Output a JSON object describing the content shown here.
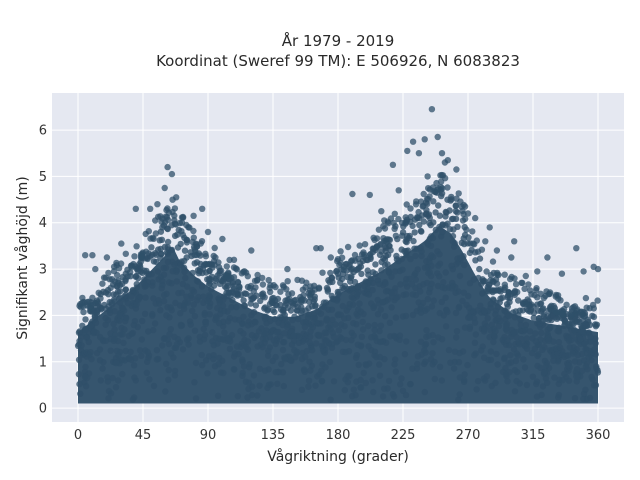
{
  "chart_data": {
    "type": "scatter",
    "title_line1": "År 1979 - 2019",
    "title_line2": "Koordinat (Sweref 99 TM): E 506926, N 6083823",
    "xlabel": "Vågriktning (grader)",
    "ylabel": "Signifikant våghöjd (m)",
    "xlim": [
      -18,
      378
    ],
    "ylim": [
      -0.3,
      6.8
    ],
    "x_ticks": [
      0,
      45,
      90,
      135,
      180,
      225,
      270,
      315,
      360
    ],
    "x_tick_labels": [
      "0",
      "45",
      "90",
      "135",
      "180",
      "225",
      "270",
      "315",
      "360"
    ],
    "y_ticks": [
      0,
      1,
      2,
      3,
      4,
      5,
      6
    ],
    "y_tick_labels": [
      "0",
      "1",
      "2",
      "3",
      "4",
      "5",
      "6"
    ],
    "grid": true,
    "marker_color": "#2f5069",
    "background_color": "#e5e8f1",
    "dense_upper_envelope": [
      [
        0,
        2.0
      ],
      [
        10,
        2.3
      ],
      [
        20,
        2.6
      ],
      [
        30,
        2.9
      ],
      [
        40,
        3.2
      ],
      [
        50,
        3.6
      ],
      [
        60,
        4.0
      ],
      [
        65,
        4.3
      ],
      [
        70,
        3.9
      ],
      [
        80,
        3.5
      ],
      [
        90,
        3.2
      ],
      [
        100,
        3.0
      ],
      [
        110,
        2.8
      ],
      [
        120,
        2.6
      ],
      [
        135,
        2.4
      ],
      [
        150,
        2.4
      ],
      [
        165,
        2.6
      ],
      [
        180,
        3.0
      ],
      [
        195,
        3.3
      ],
      [
        210,
        3.6
      ],
      [
        225,
        4.0
      ],
      [
        240,
        4.4
      ],
      [
        250,
        4.8
      ],
      [
        258,
        4.6
      ],
      [
        265,
        4.2
      ],
      [
        275,
        3.5
      ],
      [
        285,
        2.9
      ],
      [
        300,
        2.5
      ],
      [
        315,
        2.3
      ],
      [
        330,
        2.2
      ],
      [
        345,
        2.1
      ],
      [
        360,
        2.0
      ]
    ],
    "dense_lower": 0.1,
    "outliers": [
      [
        62,
        5.2
      ],
      [
        65,
        5.05
      ],
      [
        60,
        4.75
      ],
      [
        68,
        4.55
      ],
      [
        50,
        4.3
      ],
      [
        55,
        4.4
      ],
      [
        80,
        4.15
      ],
      [
        72,
        4.0
      ],
      [
        40,
        4.3
      ],
      [
        30,
        3.55
      ],
      [
        100,
        3.65
      ],
      [
        120,
        3.4
      ],
      [
        108,
        3.2
      ],
      [
        145,
        3.0
      ],
      [
        155,
        2.75
      ],
      [
        165,
        3.45
      ],
      [
        168,
        3.45
      ],
      [
        175,
        3.25
      ],
      [
        190,
        4.62
      ],
      [
        202,
        4.6
      ],
      [
        210,
        4.25
      ],
      [
        212,
        4.05
      ],
      [
        222,
        4.7
      ],
      [
        218,
        5.25
      ],
      [
        228,
        5.55
      ],
      [
        232,
        5.75
      ],
      [
        236,
        5.5
      ],
      [
        240,
        5.8
      ],
      [
        242,
        5.0
      ],
      [
        245,
        6.45
      ],
      [
        249,
        5.85
      ],
      [
        252,
        5.5
      ],
      [
        254,
        5.3
      ],
      [
        256,
        5.35
      ],
      [
        262,
        5.15
      ],
      [
        268,
        4.35
      ],
      [
        270,
        4.2
      ],
      [
        275,
        4.1
      ],
      [
        282,
        3.6
      ],
      [
        285,
        3.9
      ],
      [
        290,
        3.4
      ],
      [
        300,
        3.25
      ],
      [
        302,
        3.6
      ],
      [
        310,
        2.85
      ],
      [
        318,
        2.95
      ],
      [
        325,
        3.25
      ],
      [
        335,
        2.9
      ],
      [
        345,
        3.45
      ],
      [
        350,
        2.95
      ],
      [
        357,
        3.05
      ],
      [
        360,
        3.0
      ],
      [
        5,
        3.3
      ],
      [
        10,
        3.3
      ],
      [
        12,
        3.0
      ],
      [
        20,
        3.25
      ],
      [
        25,
        3.05
      ],
      [
        86,
        4.3
      ],
      [
        90,
        3.8
      ]
    ]
  }
}
